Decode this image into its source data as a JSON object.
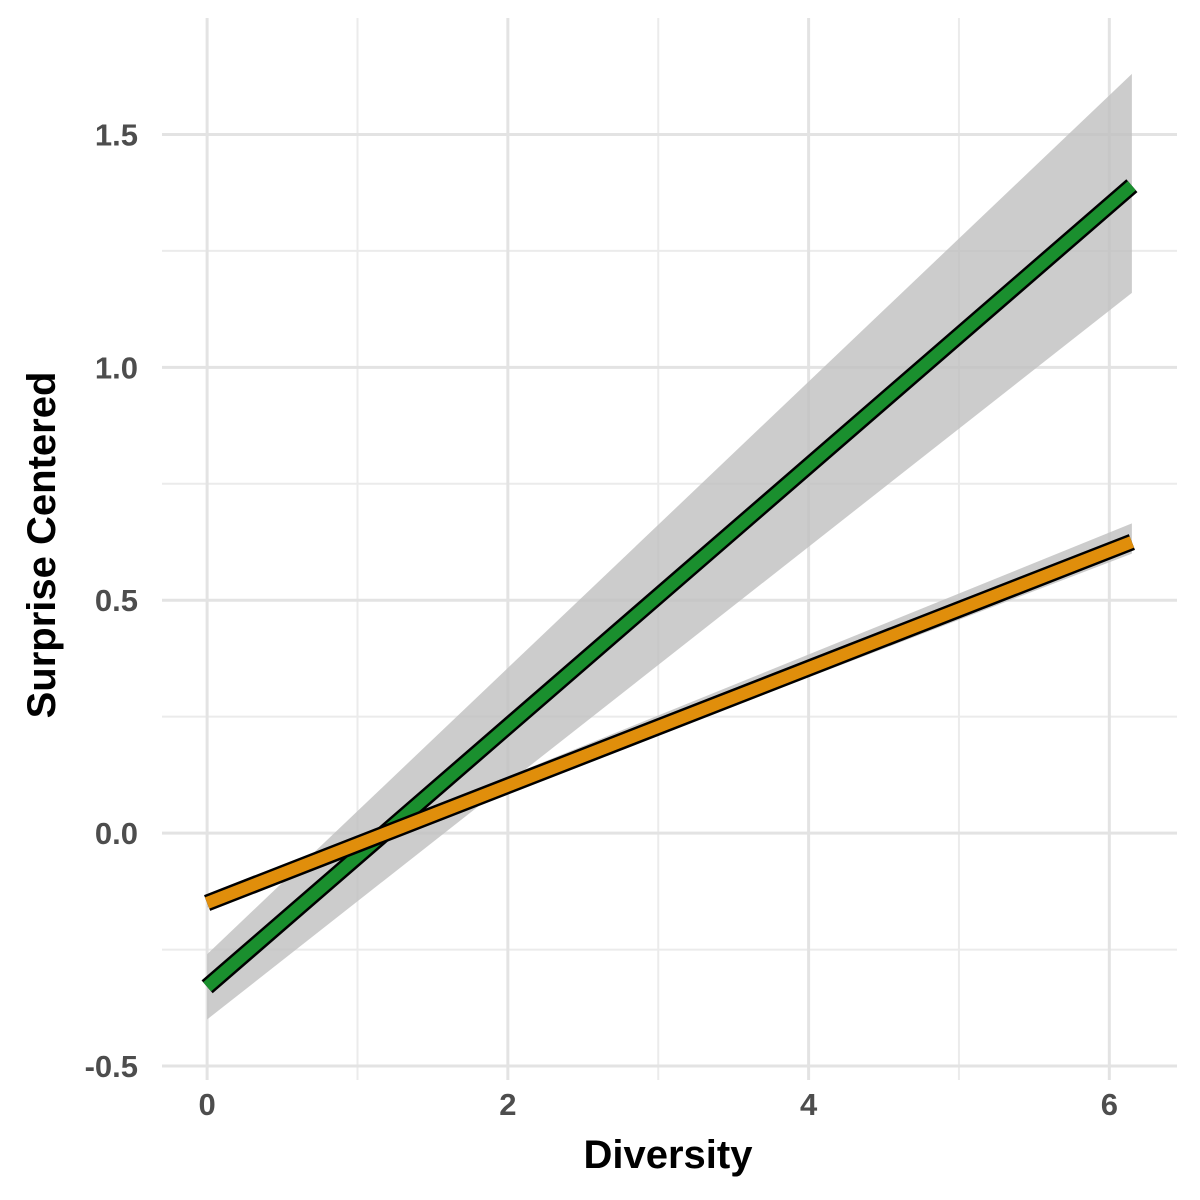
{
  "chart_data": {
    "type": "line",
    "xlabel": "Diversity",
    "ylabel": "Surprise Centered",
    "xlim": [
      -0.3,
      6.45
    ],
    "ylim": [
      -0.53,
      1.75
    ],
    "x_ticks": [
      0,
      2,
      4,
      6
    ],
    "x_tick_labels": [
      "0",
      "2",
      "4",
      "6"
    ],
    "x_minor_ticks": [
      1,
      3,
      5
    ],
    "y_ticks": [
      -0.5,
      0.0,
      0.5,
      1.0,
      1.5
    ],
    "y_tick_labels": [
      "-0.5",
      "0.0",
      "0.5",
      "1.0",
      "1.5"
    ],
    "y_minor_ticks": [
      -0.25,
      0.25,
      0.75,
      1.25
    ],
    "grid": true,
    "legend": "none",
    "series": [
      {
        "color": "#1a8f2e",
        "x": [
          0,
          6.15
        ],
        "values": [
          -0.33,
          1.39
        ],
        "ci_lower": [
          -0.4,
          1.16
        ],
        "ci_upper": [
          -0.26,
          1.63
        ]
      },
      {
        "color": "#e08e0b",
        "x": [
          0,
          6.15
        ],
        "values": [
          -0.15,
          0.625
        ],
        "ci_lower": [
          -0.16,
          0.6
        ],
        "ci_upper": [
          -0.14,
          0.665
        ]
      }
    ],
    "ci_color": "#bfbfbf"
  }
}
